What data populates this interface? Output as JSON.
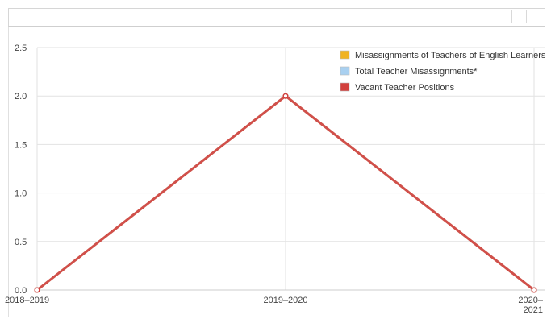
{
  "chart_data": {
    "type": "line",
    "title": "",
    "xlabel": "",
    "ylabel": "",
    "categories": [
      "2018–2019",
      "2019–2020",
      "2020–2021"
    ],
    "ylim": [
      0,
      2.5
    ],
    "yticks": [
      "0.0",
      "0.5",
      "1.0",
      "1.5",
      "2.0",
      "2.5"
    ],
    "grid": true,
    "legend_position": "top-right",
    "series": [
      {
        "name": "Misassignments of Teachers of English Learners",
        "color": "#f0b323",
        "values": [
          0,
          2,
          0
        ]
      },
      {
        "name": "Total Teacher Misassignments*",
        "color": "#a9d0f0",
        "values": [
          0,
          2,
          0
        ]
      },
      {
        "name": "Vacant Teacher Positions",
        "color": "#d2403d",
        "values": [
          0,
          2,
          0
        ]
      }
    ]
  }
}
